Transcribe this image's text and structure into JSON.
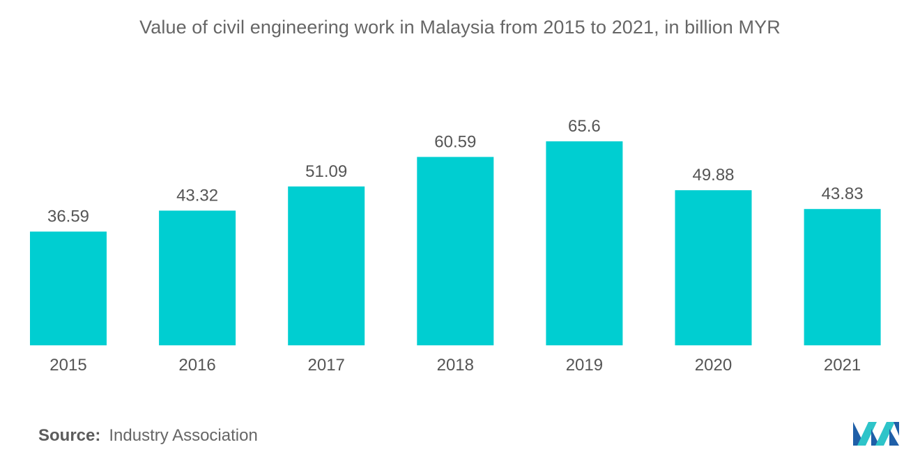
{
  "chart_data": {
    "type": "bar",
    "title": "Value of civil engineering work in Malaysia from 2015 to 2021, in billion MYR",
    "categories": [
      "2015",
      "2016",
      "2017",
      "2018",
      "2019",
      "2020",
      "2021"
    ],
    "values": [
      36.59,
      43.32,
      51.09,
      60.59,
      65.6,
      49.88,
      43.83
    ],
    "value_labels": [
      "36.59",
      "43.32",
      "51.09",
      "60.59",
      "65.6",
      "49.88",
      "43.83"
    ],
    "xlabel": "",
    "ylabel": "",
    "ylim": [
      0,
      65.6
    ],
    "grid": false,
    "legend": "none",
    "bar_color": "#00ced1"
  },
  "footer": {
    "source_label": "Source:",
    "source_value": "Industry Association"
  },
  "logo": {
    "icon": "mordor-intelligence-logo-icon",
    "colors": [
      "#1f5fa8",
      "#2ec4c9"
    ]
  }
}
